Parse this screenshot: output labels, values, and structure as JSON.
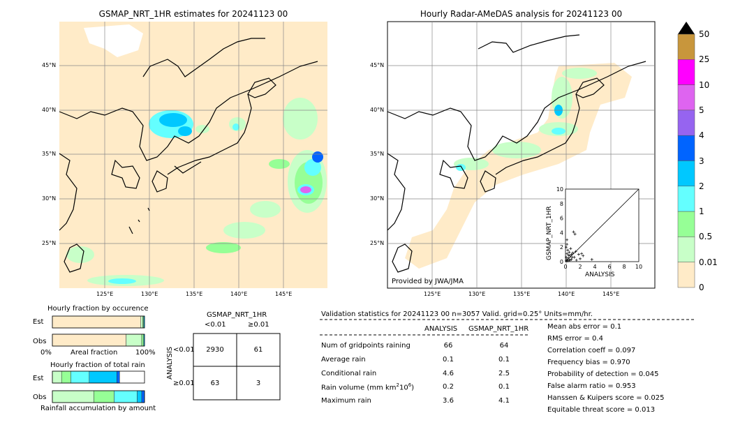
{
  "left_map": {
    "title": "GSMAP_NRT_1HR estimates for 20241123 00",
    "lat_labels": [
      "45°N",
      "40°N",
      "35°N",
      "30°N",
      "25°N"
    ],
    "lon_labels": [
      "125°E",
      "130°E",
      "135°E",
      "140°E",
      "145°E"
    ]
  },
  "right_map": {
    "title": "Hourly Radar-AMeDAS analysis for 20241123 00",
    "lat_labels": [
      "45°N",
      "40°N",
      "35°N",
      "30°N",
      "25°N"
    ],
    "lon_labels": [
      "125°E",
      "130°E",
      "135°E",
      "140°E",
      "145°E"
    ],
    "credit": "Provided by JWA/JMA"
  },
  "colorbar": {
    "labels": [
      "50",
      "25",
      "10",
      "5",
      "4",
      "3",
      "2",
      "1",
      "0.5",
      "0.01",
      "0"
    ],
    "colors": [
      "#c8963c",
      "#ff00ff",
      "#de64f0",
      "#9664f0",
      "#0064ff",
      "#00c8ff",
      "#64ffff",
      "#96ff96",
      "#c8ffc8",
      "#ffebc8"
    ]
  },
  "chart_data": [
    {
      "type": "scatter",
      "xlabel": "ANALYSIS",
      "ylabel": "GSMAP_NRT_1HR",
      "xlim": [
        0,
        10
      ],
      "ylim": [
        0,
        10
      ],
      "ticks": [
        "0",
        "2",
        "4",
        "6",
        "8",
        "10"
      ],
      "points": [
        [
          0.1,
          0.1
        ],
        [
          0.2,
          0.3
        ],
        [
          0.3,
          0.1
        ],
        [
          0.4,
          0.5
        ],
        [
          0.5,
          0.2
        ],
        [
          0.6,
          0.8
        ],
        [
          0.8,
          0.3
        ],
        [
          1.0,
          1.2
        ],
        [
          1.2,
          0.6
        ],
        [
          1.5,
          0.2
        ],
        [
          2.0,
          0.4
        ],
        [
          0.2,
          2.4
        ],
        [
          0.1,
          2.0
        ],
        [
          0.3,
          1.6
        ],
        [
          0.2,
          3.0
        ],
        [
          0.5,
          1.3
        ],
        [
          0.8,
          1.0
        ],
        [
          1.1,
          4.1
        ],
        [
          1.3,
          3.8
        ],
        [
          3.6,
          0.3
        ],
        [
          2.4,
          0.8
        ],
        [
          1.8,
          1.0
        ],
        [
          0.4,
          0.9
        ],
        [
          0.6,
          0.2
        ],
        [
          0.9,
          0.6
        ],
        [
          0.2,
          1.1
        ],
        [
          0.1,
          0.6
        ],
        [
          1.4,
          1.4
        ],
        [
          2.2,
          1.1
        ],
        [
          0.7,
          1.8
        ]
      ]
    },
    {
      "type": "bar",
      "title": "Hourly fraction by occurence",
      "categories": [
        "Est",
        "Obs"
      ],
      "xlabel": "Areal fraction",
      "x_start": "0%",
      "x_end": "100%",
      "series": [
        {
          "color": "#ffebc8",
          "values": [
            0.96,
            0.8
          ]
        },
        {
          "color": "#c8ffc8",
          "values": [
            0.02,
            0.17
          ]
        },
        {
          "color": "#96ff96",
          "values": [
            0.01,
            0.02
          ]
        },
        {
          "color": "#00c8ff",
          "values": [
            0.01,
            0.01
          ]
        }
      ]
    },
    {
      "type": "bar",
      "title": "Hourly fraction of total rain",
      "categories": [
        "Est",
        "Obs"
      ],
      "xlabel": "Rainfall accumulation by amount",
      "series": [
        {
          "color": "#c8ffc8",
          "values": [
            0.1,
            0.45
          ]
        },
        {
          "color": "#96ff96",
          "values": [
            0.1,
            0.22
          ]
        },
        {
          "color": "#64ffff",
          "values": [
            0.2,
            0.25
          ]
        },
        {
          "color": "#00c8ff",
          "values": [
            0.3,
            0.05
          ]
        },
        {
          "color": "#0064ff",
          "values": [
            0.03,
            0.03
          ]
        }
      ]
    },
    {
      "type": "table",
      "title": "GSMAP_NRT_1HR",
      "col_headers": [
        "<0.01",
        "≥0.01"
      ],
      "row_axis_label": "ANALYSIS",
      "row_headers": [
        "<0.01",
        "≥0.01"
      ],
      "cells": [
        [
          "2930",
          "61"
        ],
        [
          "63",
          "3"
        ]
      ]
    }
  ],
  "validation": {
    "header": "Validation statistics for 20241123 00  n=3057 Valid. grid=0.25° Units=mm/hr.",
    "col_analysis": "ANALYSIS",
    "col_gsmap": "GSMAP_NRT_1HR",
    "rows": [
      {
        "label": "Num of gridpoints raining",
        "a": "66",
        "g": "64"
      },
      {
        "label": "Average rain",
        "a": "0.1",
        "g": "0.1"
      },
      {
        "label": "Conditional rain",
        "a": "4.6",
        "g": "2.5"
      },
      {
        "label_main": "Rain volume (mm km",
        "label_sup": "2",
        "label_mid": "10",
        "label_sup2": "6",
        "label_end": ")",
        "a": "0.2",
        "g": "0.1"
      },
      {
        "label": "Maximum rain",
        "a": "3.6",
        "g": "4.1"
      }
    ],
    "scores": [
      "Mean abs error =    0.1",
      "RMS error =    0.4",
      "Correlation coeff =  0.097",
      "Frequency bias =  0.970",
      "Probability of detection =  0.045",
      "False alarm ratio =  0.953",
      "Hanssen & Kuipers score =  0.025",
      "Equitable threat score =  0.013"
    ]
  }
}
